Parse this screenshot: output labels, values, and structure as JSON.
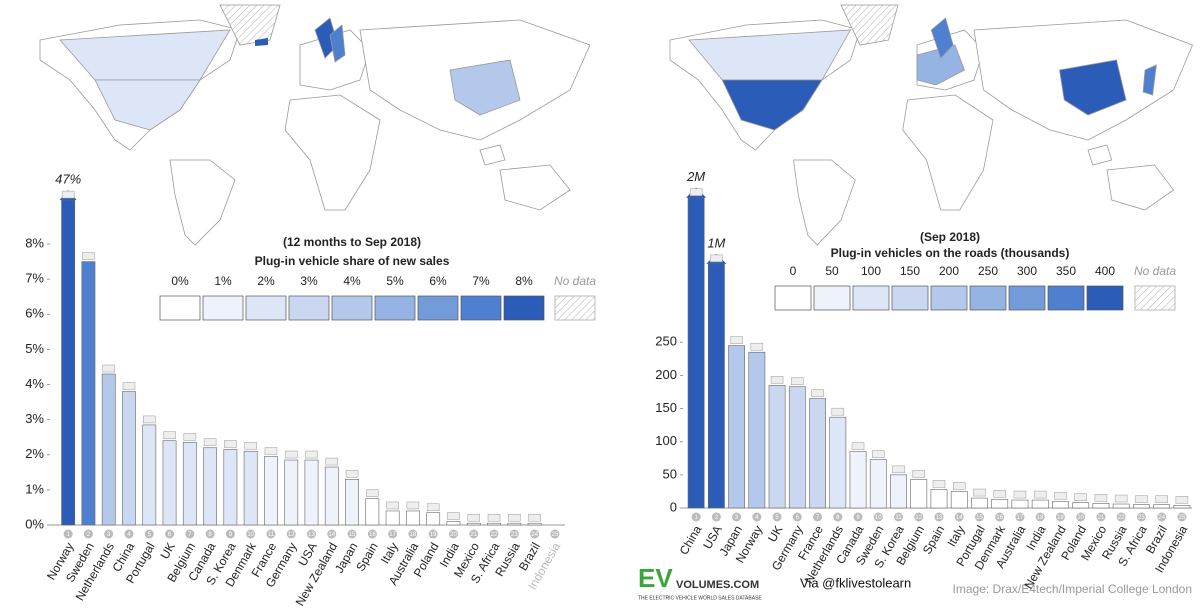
{
  "chart_data": [
    {
      "type": "bar",
      "categories": [
        "Norway",
        "Sweden",
        "Netherlands",
        "China",
        "Portugal",
        "UK",
        "Belgium",
        "Canada",
        "S. Korea",
        "Denmark",
        "France",
        "Germany",
        "USA",
        "New Zealand",
        "Japan",
        "Spain",
        "Italy",
        "Australia",
        "Poland",
        "India",
        "Mexico",
        "S. Africa",
        "Russia",
        "Brazil",
        "Indonesia"
      ],
      "ranks": [
        1,
        2,
        3,
        4,
        5,
        6,
        7,
        8,
        9,
        10,
        11,
        12,
        13,
        14,
        15,
        16,
        17,
        18,
        19,
        20,
        21,
        22,
        23,
        24,
        25
      ],
      "values": [
        47,
        7.5,
        4.3,
        3.8,
        2.85,
        2.4,
        2.35,
        2.2,
        2.15,
        2.1,
        1.95,
        1.85,
        1.85,
        1.65,
        1.3,
        0.75,
        0.4,
        0.4,
        0.35,
        0.1,
        0.05,
        0.05,
        0.05,
        0.05,
        null
      ],
      "value_labels": [
        "47%",
        null,
        null,
        null,
        null,
        null,
        null,
        null,
        null,
        null,
        null,
        null,
        null,
        null,
        null,
        null,
        null,
        null,
        null,
        null,
        null,
        null,
        null,
        null,
        null
      ],
      "ylim": [
        0,
        8.4
      ],
      "yticks": [
        {
          "value": 0,
          "label": "0%"
        },
        {
          "value": 1,
          "label": "1%"
        },
        {
          "value": 2,
          "label": "2%"
        },
        {
          "value": 3,
          "label": "3%"
        },
        {
          "value": 4,
          "label": "4%"
        },
        {
          "value": 5,
          "label": "5%"
        },
        {
          "value": 6,
          "label": "6%"
        },
        {
          "value": 7,
          "label": "7%"
        },
        {
          "value": 8,
          "label": "8%"
        }
      ],
      "legend": {
        "title": "(12 months to Sep 2018)",
        "subtitle": "Plug-in vehicle share of new sales",
        "scale": [
          {
            "value": 0,
            "label": "0%"
          },
          {
            "value": 1,
            "label": "1%"
          },
          {
            "value": 2,
            "label": "2%"
          },
          {
            "value": 3,
            "label": "3%"
          },
          {
            "value": 4,
            "label": "4%"
          },
          {
            "value": 5,
            "label": "5%"
          },
          {
            "value": 6,
            "label": "6%"
          },
          {
            "value": 7,
            "label": "7%"
          },
          {
            "value": 8,
            "label": "8%"
          }
        ],
        "colors": [
          "#ffffff",
          "#eef2fb",
          "#dde6f6",
          "#c9d8f0",
          "#b3c8ea",
          "#95b4e3",
          "#739ad9",
          "#4f7fcf",
          "#2b5cb8"
        ],
        "no_data": "No data"
      }
    },
    {
      "type": "bar",
      "categories": [
        "China",
        "USA",
        "Japan",
        "Norway",
        "UK",
        "Germany",
        "France",
        "Netherlands",
        "Canada",
        "Sweden",
        "S. Korea",
        "Belgium",
        "Spain",
        "Italy",
        "Portugal",
        "Denmark",
        "Australia",
        "India",
        "New Zealand",
        "Poland",
        "Mexico",
        "Russia",
        "S. Africa",
        "Brazil",
        "Indonesia"
      ],
      "ranks": [
        1,
        2,
        3,
        4,
        5,
        6,
        7,
        8,
        9,
        10,
        11,
        12,
        13,
        14,
        15,
        16,
        17,
        18,
        19,
        20,
        21,
        22,
        23,
        24,
        25
      ],
      "values": [
        2000,
        1000,
        245,
        235,
        185,
        183,
        165,
        137,
        85,
        73,
        50,
        43,
        28,
        25,
        15,
        13,
        12,
        12,
        10,
        8,
        7,
        6,
        5,
        5,
        4
      ],
      "value_labels": [
        "2M",
        "1M",
        null,
        null,
        null,
        null,
        null,
        null,
        null,
        null,
        null,
        null,
        null,
        null,
        null,
        null,
        null,
        null,
        null,
        null,
        null,
        null,
        null,
        null,
        null
      ],
      "ylim": [
        0,
        270
      ],
      "yticks": [
        0,
        50,
        100,
        150,
        200,
        250
      ],
      "legend": {
        "title": "(Sep 2018)",
        "subtitle": "Plug-in vehicles on the roads (thousands)",
        "scale": [
          0,
          50,
          100,
          150,
          200,
          250,
          300,
          350,
          400
        ],
        "colors": [
          "#ffffff",
          "#eef2fb",
          "#dde6f6",
          "#c9d8f0",
          "#b3c8ea",
          "#95b4e3",
          "#739ad9",
          "#4f7fcf",
          "#2b5cb8"
        ],
        "no_data": "No data"
      }
    }
  ],
  "footer": {
    "logo_ev": "EV",
    "logo_site": "VOLUMES.COM",
    "logo_tagline": "THE ELECTRIC VEHICLE WORLD SALES DATABASE",
    "via": "Via @fklivestolearn",
    "credit": "Image: Drax/E4tech/Imperial College London"
  }
}
